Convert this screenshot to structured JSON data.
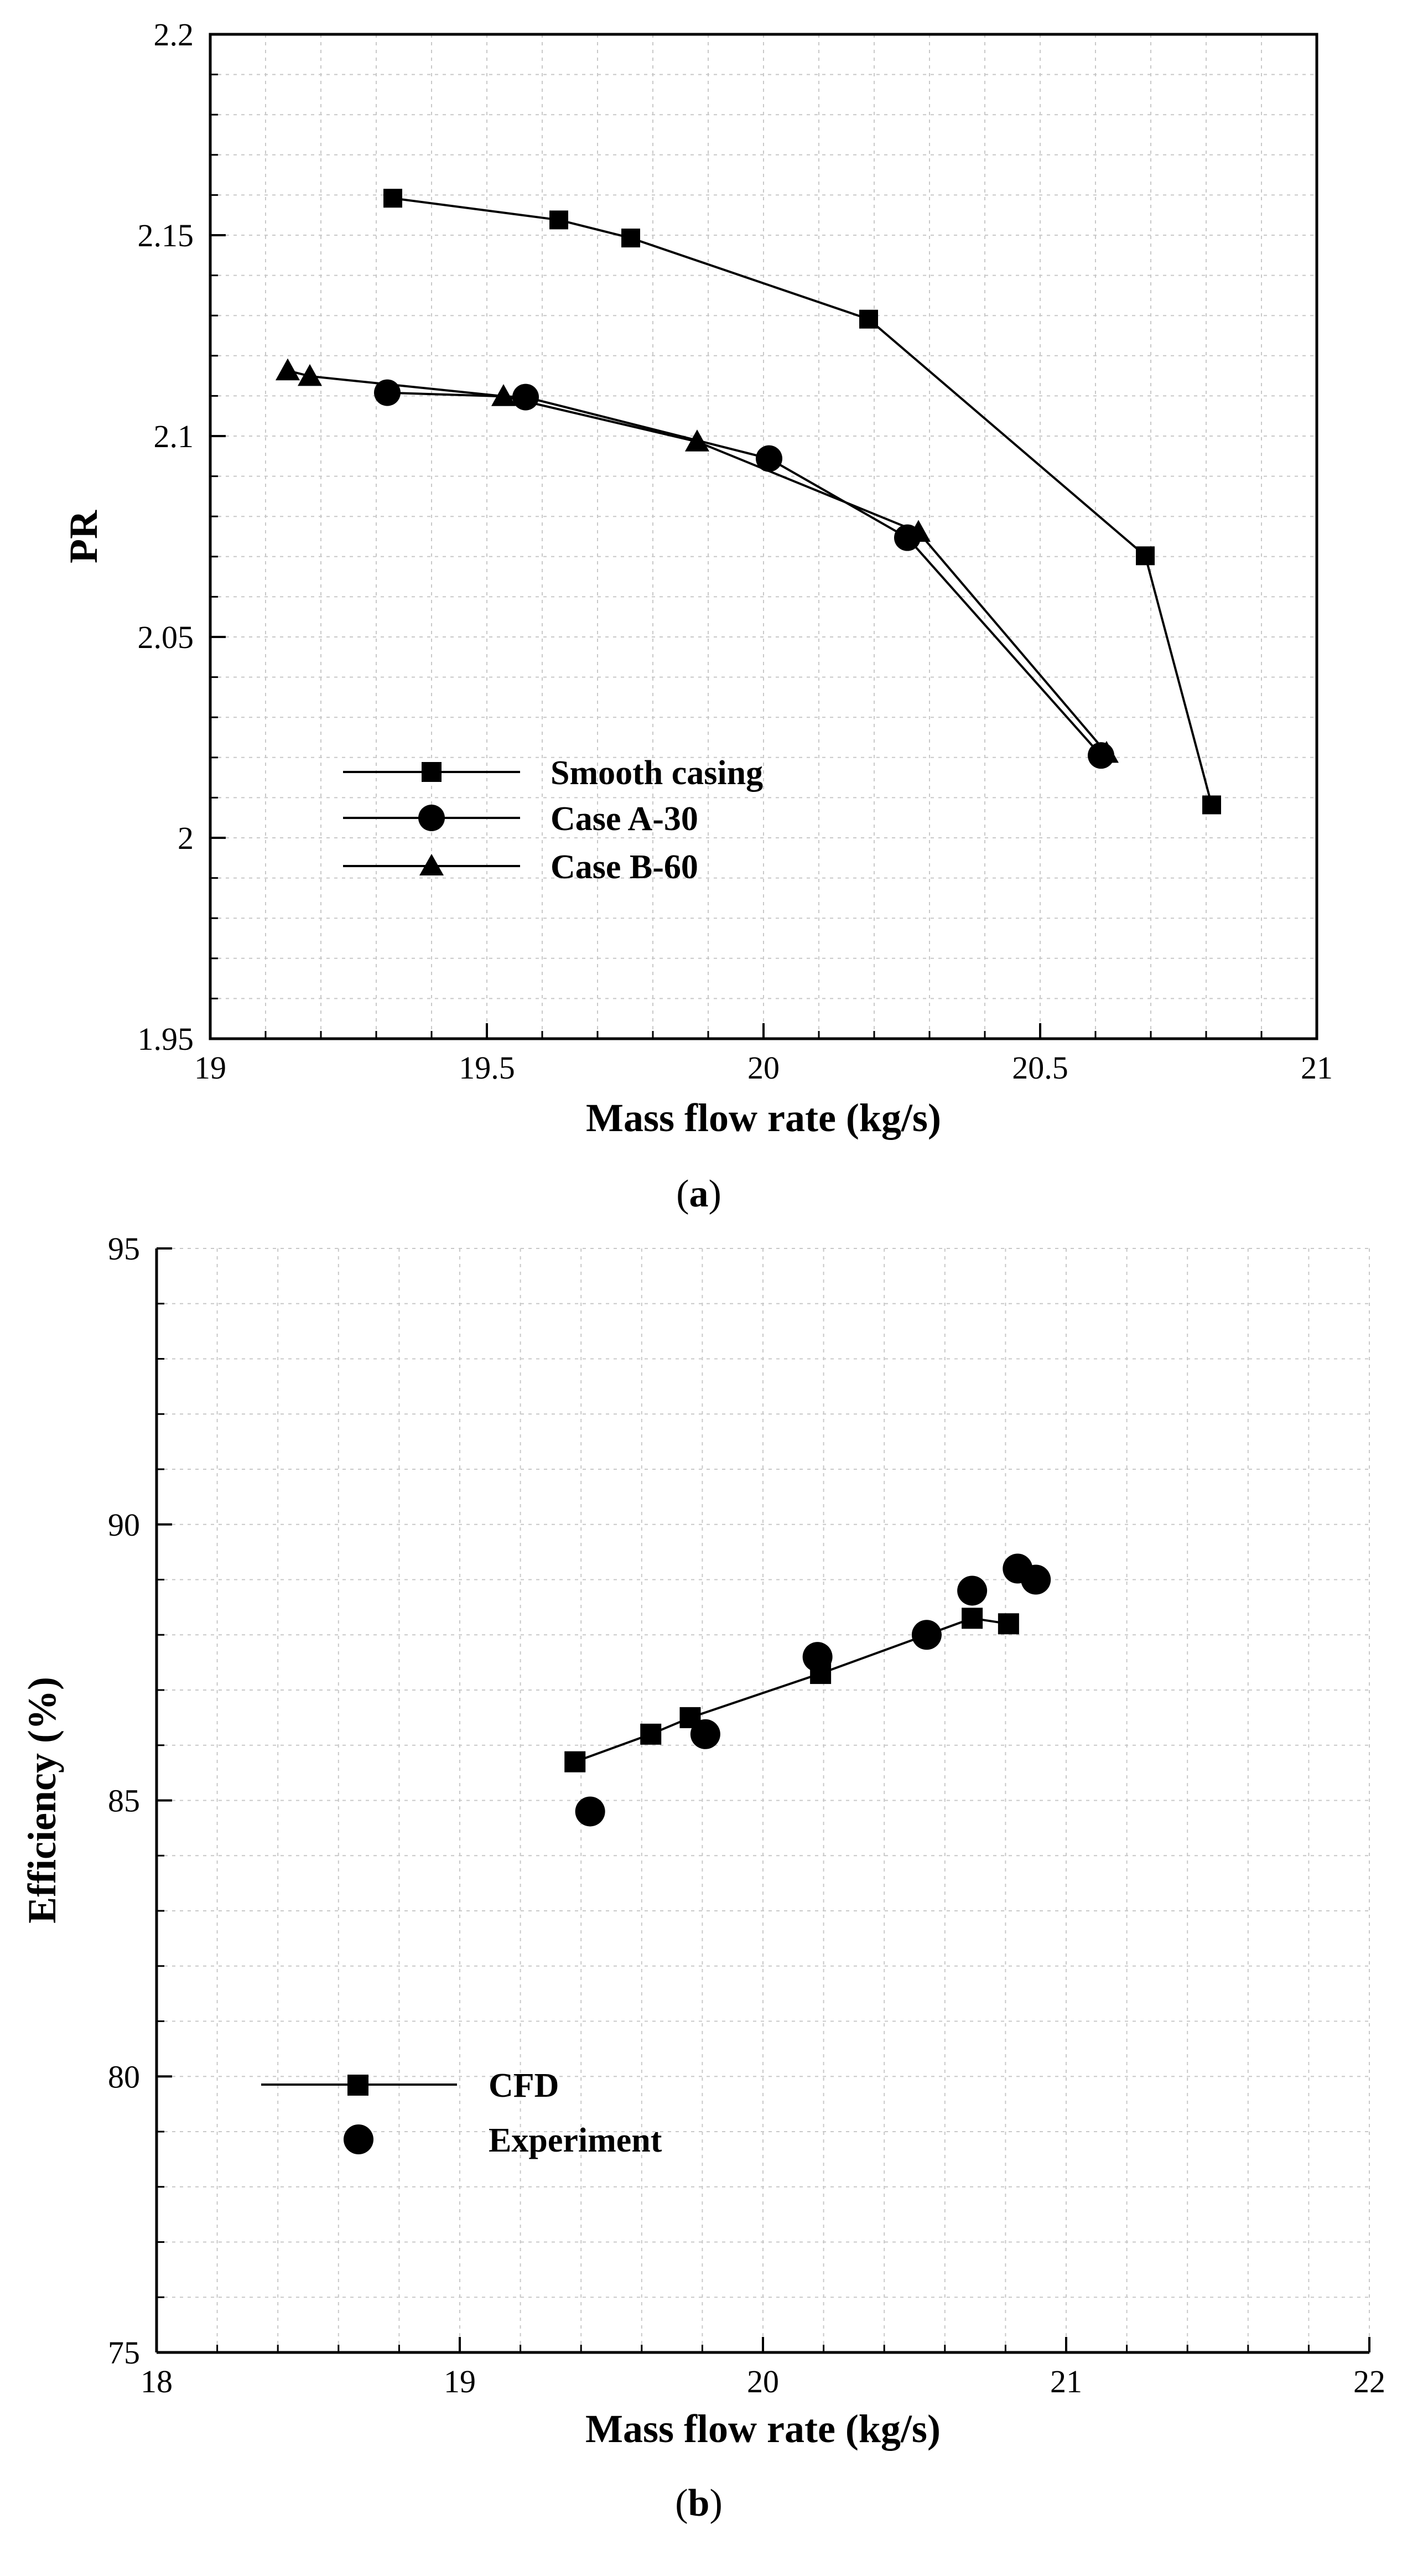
{
  "chart_data": [
    {
      "type": "line",
      "panel": "a",
      "title": "",
      "xlabel": "Mass flow rate (kg/s)",
      "ylabel": "PR",
      "xlim": [
        19,
        21
      ],
      "ylim": [
        1.95,
        2.2
      ],
      "xticks": [
        19,
        19.5,
        20,
        20.5,
        21
      ],
      "xtick_labels": [
        "19",
        "19.5",
        "20",
        "20.5",
        "21"
      ],
      "yticks": [
        1.95,
        2,
        2.05,
        2.1,
        2.15,
        2.2
      ],
      "ytick_labels": [
        "1.95",
        "2",
        "2.05",
        "2.1",
        "2.15",
        "2.2"
      ],
      "grid": true,
      "legend_position": "lower-left",
      "series": [
        {
          "name": "Smooth casing",
          "marker": "square",
          "line": true,
          "x": [
            19.33,
            19.63,
            19.76,
            20.19,
            20.69,
            20.81
          ],
          "y": [
            2.1592,
            2.1538,
            2.1493,
            2.1291,
            2.0702,
            2.0082
          ]
        },
        {
          "name": "Case A-30",
          "marker": "circle",
          "line": true,
          "x": [
            19.32,
            19.57,
            20.01,
            20.26,
            20.61
          ],
          "y": [
            2.1108,
            2.1097,
            2.0944,
            2.0747,
            2.0205
          ]
        },
        {
          "name": "Case B-60",
          "marker": "triangle",
          "line": true,
          "x": [
            19.14,
            19.18,
            19.53,
            19.88,
            20.28,
            20.62
          ],
          "y": [
            2.1163,
            2.1149,
            2.1099,
            2.0986,
            2.0761,
            2.0211
          ]
        }
      ]
    },
    {
      "type": "line",
      "panel": "b",
      "title": "",
      "xlabel": "Mass flow rate (kg/s)",
      "ylabel": "Efficiency (%)",
      "xlim": [
        18,
        22
      ],
      "ylim": [
        75,
        95
      ],
      "xticks": [
        18,
        19,
        20,
        21,
        22
      ],
      "xtick_labels": [
        "18",
        "19",
        "20",
        "21",
        "22"
      ],
      "yticks": [
        75,
        80,
        85,
        90,
        95
      ],
      "ytick_labels": [
        "75",
        "80",
        "85",
        "90",
        "95"
      ],
      "grid": true,
      "legend_position": "lower-left",
      "series": [
        {
          "name": "CFD",
          "marker": "square",
          "line": true,
          "x": [
            19.38,
            19.63,
            19.76,
            20.19,
            20.69,
            20.81
          ],
          "y": [
            85.7,
            86.2,
            86.5,
            87.3,
            88.3,
            88.2
          ]
        },
        {
          "name": "Experiment",
          "marker": "circle",
          "line": false,
          "x": [
            19.43,
            19.81,
            20.18,
            20.54,
            20.69,
            20.84,
            20.9
          ],
          "y": [
            84.8,
            86.2,
            87.6,
            88.0,
            88.8,
            89.2,
            89.0
          ]
        }
      ]
    }
  ],
  "captions": {
    "a_open": "(",
    "a_letter": "a",
    "a_close": ")",
    "b_open": "(",
    "b_letter": "b",
    "b_close": ")"
  }
}
